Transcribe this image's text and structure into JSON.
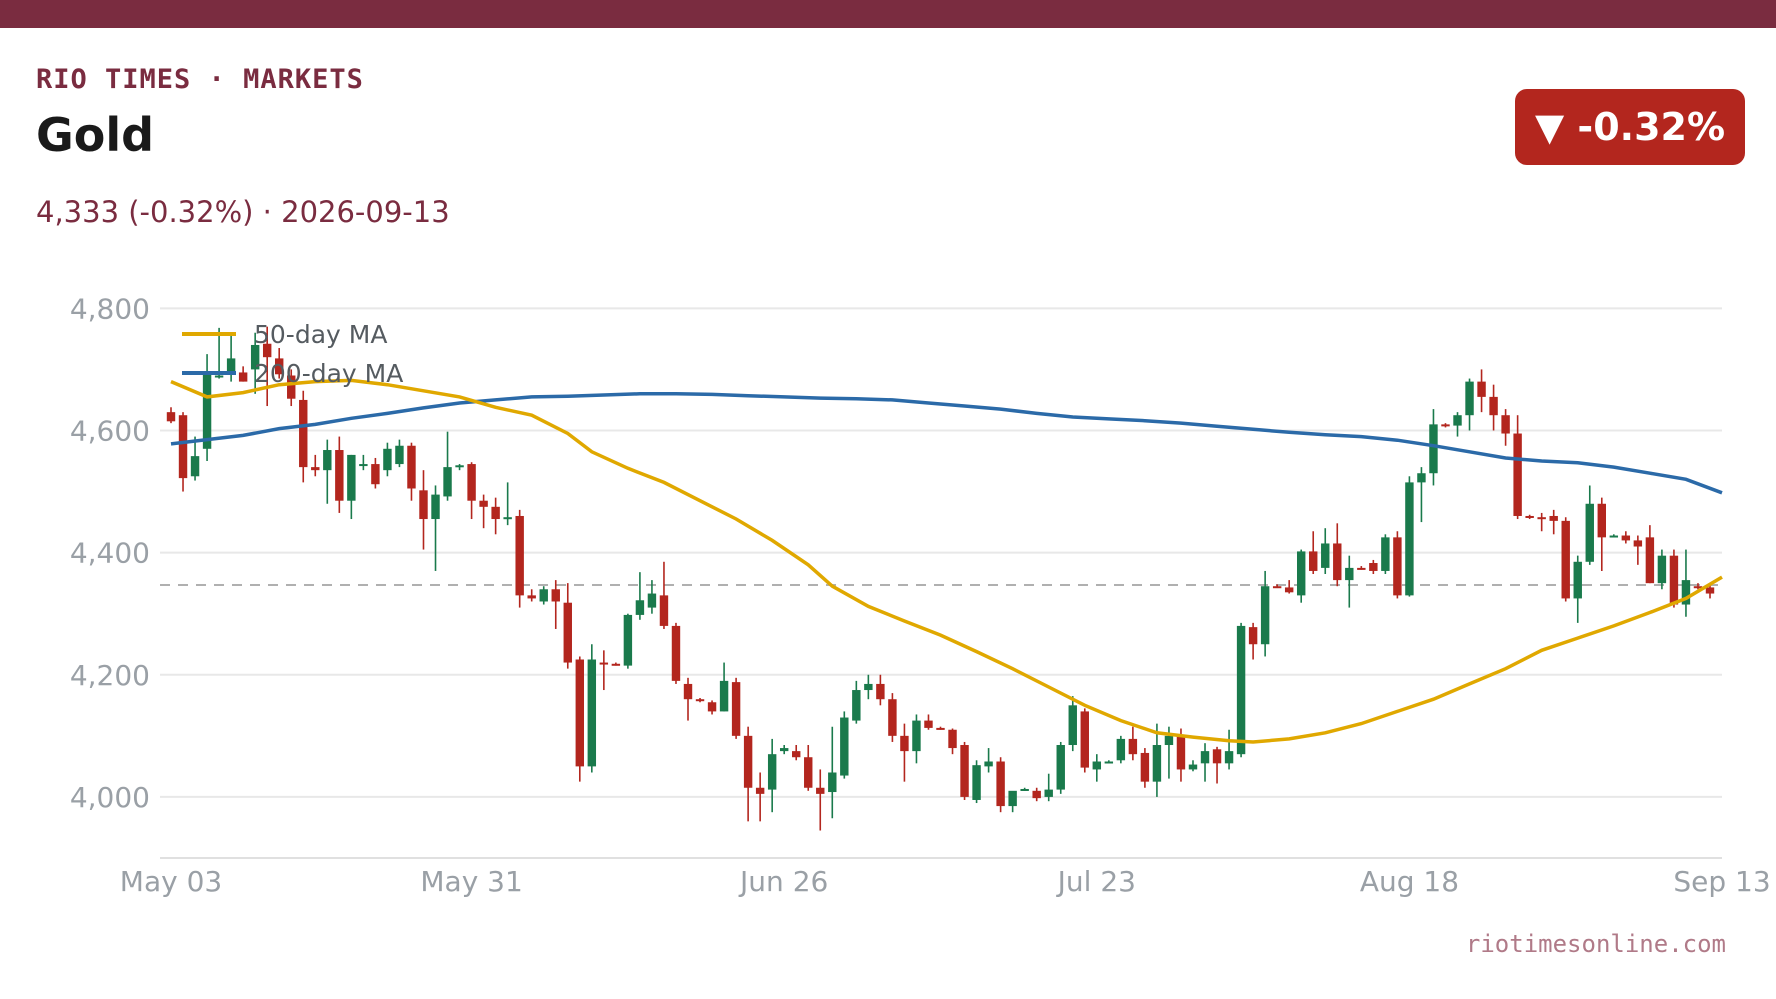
{
  "header": {
    "brand": "RIO TIMES · MARKETS",
    "title": "Gold",
    "subtitle": "4,333 (-0.32%)  ·  2026-09-13",
    "badge": "▼ -0.32%",
    "badge_icon": "down-triangle-icon"
  },
  "footer": {
    "source": "riotimesonline.com"
  },
  "colors": {
    "brand": "#7a2c40",
    "up": "#1a7a4c",
    "down": "#b3261e",
    "ma50": "#e0a800",
    "ma200": "#2b6aa8",
    "grid": "#e8e8e8",
    "reference": "#b0b0b0"
  },
  "chart_data": {
    "type": "candlestick",
    "title": "Gold",
    "ylim": [
      3900,
      4830
    ],
    "yticks": [
      4000,
      4200,
      4400,
      4600,
      4800
    ],
    "ytick_labels": [
      "4,000",
      "4,200",
      "4,400",
      "4,600",
      "4,800"
    ],
    "xticks": [
      {
        "label": "May 03",
        "index": 0
      },
      {
        "label": "May 31",
        "index": 25
      },
      {
        "label": "Jun 26",
        "index": 51
      },
      {
        "label": "Jul 23",
        "index": 77
      },
      {
        "label": "Aug 18",
        "index": 103
      },
      {
        "label": "Sep 13",
        "index": 129
      }
    ],
    "reference_line": 4347,
    "legend": [
      {
        "name": "50-day MA",
        "color": "#e0a800"
      },
      {
        "name": "200-day MA",
        "color": "#2b6aa8"
      }
    ],
    "ohlc": [
      [
        4630,
        4638,
        4612,
        4615
      ],
      [
        4625,
        4630,
        4500,
        4522
      ],
      [
        4525,
        4590,
        4518,
        4558
      ],
      [
        4570,
        4725,
        4550,
        4695
      ],
      [
        4690,
        4768,
        4685,
        4690
      ],
      [
        4692,
        4755,
        4680,
        4718
      ],
      [
        4695,
        4705,
        4680,
        4680
      ],
      [
        4700,
        4760,
        4660,
        4740
      ],
      [
        4742,
        4770,
        4640,
        4720
      ],
      [
        4718,
        4735,
        4685,
        4692
      ],
      [
        4690,
        4700,
        4640,
        4652
      ],
      [
        4650,
        4665,
        4515,
        4540
      ],
      [
        4540,
        4560,
        4525,
        4535
      ],
      [
        4535,
        4585,
        4480,
        4568
      ],
      [
        4568,
        4590,
        4465,
        4485
      ],
      [
        4485,
        4560,
        4455,
        4560
      ],
      [
        4545,
        4560,
        4535,
        4545
      ],
      [
        4545,
        4555,
        4505,
        4512
      ],
      [
        4535,
        4580,
        4525,
        4570
      ],
      [
        4545,
        4585,
        4540,
        4575
      ],
      [
        4575,
        4580,
        4485,
        4505
      ],
      [
        4502,
        4535,
        4405,
        4455
      ],
      [
        4455,
        4510,
        4370,
        4495
      ],
      [
        4492,
        4598,
        4485,
        4540
      ],
      [
        4540,
        4545,
        4535,
        4543
      ],
      [
        4545,
        4548,
        4455,
        4485
      ],
      [
        4485,
        4495,
        4440,
        4475
      ],
      [
        4475,
        4490,
        4430,
        4455
      ],
      [
        4455,
        4515,
        4445,
        4458
      ],
      [
        4460,
        4470,
        4310,
        4330
      ],
      [
        4330,
        4340,
        4320,
        4325
      ],
      [
        4320,
        4345,
        4315,
        4340
      ],
      [
        4340,
        4355,
        4275,
        4320
      ],
      [
        4318,
        4350,
        4210,
        4220
      ],
      [
        4225,
        4230,
        4025,
        4050
      ],
      [
        4050,
        4250,
        4040,
        4225
      ],
      [
        4220,
        4240,
        4175,
        4218
      ],
      [
        4218,
        4220,
        4215,
        4215
      ],
      [
        4215,
        4300,
        4210,
        4298
      ],
      [
        4298,
        4368,
        4290,
        4322
      ],
      [
        4310,
        4355,
        4300,
        4333
      ],
      [
        4330,
        4385,
        4275,
        4280
      ],
      [
        4280,
        4285,
        4185,
        4190
      ],
      [
        4185,
        4195,
        4125,
        4160
      ],
      [
        4160,
        4162,
        4155,
        4157
      ],
      [
        4155,
        4158,
        4135,
        4140
      ],
      [
        4140,
        4220,
        4140,
        4190
      ],
      [
        4188,
        4195,
        4095,
        4100
      ],
      [
        4100,
        4115,
        3960,
        4015
      ],
      [
        4015,
        4040,
        3960,
        4005
      ],
      [
        4012,
        4095,
        3975,
        4070
      ],
      [
        4075,
        4085,
        4070,
        4080
      ],
      [
        4075,
        4085,
        4060,
        4065
      ],
      [
        4065,
        4085,
        4010,
        4015
      ],
      [
        4015,
        4045,
        3945,
        4005
      ],
      [
        4008,
        4115,
        3965,
        4040
      ],
      [
        4035,
        4140,
        4030,
        4130
      ],
      [
        4125,
        4190,
        4120,
        4175
      ],
      [
        4175,
        4200,
        4160,
        4185
      ],
      [
        4185,
        4200,
        4150,
        4160
      ],
      [
        4160,
        4170,
        4090,
        4100
      ],
      [
        4100,
        4120,
        4025,
        4075
      ],
      [
        4075,
        4135,
        4055,
        4125
      ],
      [
        4125,
        4135,
        4110,
        4113
      ],
      [
        4113,
        4115,
        4110,
        4110
      ],
      [
        4110,
        4112,
        4070,
        4080
      ],
      [
        4085,
        4090,
        3995,
        4000
      ],
      [
        3995,
        4060,
        3990,
        4052
      ],
      [
        4050,
        4080,
        4040,
        4058
      ],
      [
        4058,
        4065,
        3975,
        3985
      ],
      [
        3985,
        4005,
        3975,
        4010
      ],
      [
        4012,
        4015,
        4010,
        4013
      ],
      [
        4010,
        4015,
        3993,
        3998
      ],
      [
        4000,
        4038,
        3993,
        4012
      ],
      [
        4012,
        4090,
        4005,
        4085
      ],
      [
        4085,
        4165,
        4075,
        4150
      ],
      [
        4140,
        4145,
        4040,
        4048
      ],
      [
        4045,
        4070,
        4025,
        4058
      ],
      [
        4057,
        4060,
        4055,
        4058
      ],
      [
        4060,
        4100,
        4055,
        4095
      ],
      [
        4095,
        4115,
        4060,
        4070
      ],
      [
        4072,
        4080,
        4015,
        4025
      ],
      [
        4025,
        4120,
        4000,
        4085
      ],
      [
        4085,
        4115,
        4030,
        4100
      ],
      [
        4100,
        4112,
        4025,
        4045
      ],
      [
        4045,
        4060,
        4042,
        4053
      ],
      [
        4055,
        4088,
        4025,
        4075
      ],
      [
        4078,
        4082,
        4022,
        4055
      ],
      [
        4055,
        4110,
        4045,
        4075
      ],
      [
        4070,
        4285,
        4065,
        4280
      ],
      [
        4278,
        4285,
        4225,
        4250
      ],
      [
        4250,
        4370,
        4230,
        4345
      ],
      [
        4345,
        4348,
        4342,
        4343
      ],
      [
        4343,
        4355,
        4333,
        4335
      ],
      [
        4330,
        4405,
        4318,
        4402
      ],
      [
        4402,
        4435,
        4365,
        4370
      ],
      [
        4375,
        4440,
        4365,
        4415
      ],
      [
        4415,
        4448,
        4345,
        4355
      ],
      [
        4355,
        4395,
        4310,
        4375
      ],
      [
        4375,
        4378,
        4372,
        4373
      ],
      [
        4383,
        4388,
        4365,
        4370
      ],
      [
        4370,
        4430,
        4365,
        4425
      ],
      [
        4425,
        4435,
        4325,
        4330
      ],
      [
        4330,
        4525,
        4328,
        4515
      ],
      [
        4515,
        4540,
        4450,
        4530
      ],
      [
        4530,
        4635,
        4510,
        4610
      ],
      [
        4610,
        4612,
        4605,
        4608
      ],
      [
        4608,
        4630,
        4590,
        4625
      ],
      [
        4625,
        4685,
        4600,
        4680
      ],
      [
        4680,
        4700,
        4630,
        4655
      ],
      [
        4655,
        4675,
        4600,
        4625
      ],
      [
        4625,
        4635,
        4575,
        4595
      ],
      [
        4595,
        4625,
        4455,
        4460
      ],
      [
        4460,
        4462,
        4455,
        4458
      ],
      [
        4458,
        4465,
        4435,
        4455
      ],
      [
        4460,
        4470,
        4430,
        4452
      ],
      [
        4452,
        4458,
        4320,
        4325
      ],
      [
        4325,
        4395,
        4285,
        4385
      ],
      [
        4385,
        4510,
        4380,
        4480
      ],
      [
        4480,
        4490,
        4370,
        4425
      ],
      [
        4425,
        4430,
        4425,
        4428
      ],
      [
        4428,
        4435,
        4415,
        4420
      ],
      [
        4420,
        4428,
        4380,
        4410
      ],
      [
        4425,
        4445,
        4350,
        4350
      ],
      [
        4350,
        4405,
        4340,
        4395
      ],
      [
        4395,
        4405,
        4310,
        4315
      ],
      [
        4315,
        4405,
        4295,
        4355
      ],
      [
        4345,
        4350,
        4340,
        4343
      ],
      [
        4343,
        4348,
        4325,
        4333
      ]
    ],
    "ma50": [
      [
        0,
        4680
      ],
      [
        3,
        4655
      ],
      [
        6,
        4662
      ],
      [
        9,
        4675
      ],
      [
        12,
        4680
      ],
      [
        15,
        4682
      ],
      [
        18,
        4675
      ],
      [
        21,
        4665
      ],
      [
        24,
        4655
      ],
      [
        27,
        4638
      ],
      [
        30,
        4625
      ],
      [
        33,
        4595
      ],
      [
        35,
        4565
      ],
      [
        38,
        4538
      ],
      [
        41,
        4515
      ],
      [
        44,
        4485
      ],
      [
        47,
        4455
      ],
      [
        50,
        4420
      ],
      [
        53,
        4380
      ],
      [
        55,
        4345
      ],
      [
        58,
        4312
      ],
      [
        61,
        4288
      ],
      [
        64,
        4265
      ],
      [
        67,
        4238
      ],
      [
        70,
        4210
      ],
      [
        73,
        4180
      ],
      [
        76,
        4150
      ],
      [
        79,
        4125
      ],
      [
        82,
        4105
      ],
      [
        85,
        4098
      ],
      [
        88,
        4092
      ],
      [
        90,
        4090
      ],
      [
        93,
        4095
      ],
      [
        96,
        4105
      ],
      [
        99,
        4120
      ],
      [
        102,
        4140
      ],
      [
        105,
        4160
      ],
      [
        108,
        4185
      ],
      [
        111,
        4210
      ],
      [
        114,
        4240
      ],
      [
        117,
        4260
      ],
      [
        120,
        4280
      ],
      [
        123,
        4302
      ],
      [
        126,
        4325
      ],
      [
        129,
        4360
      ]
    ],
    "ma200": [
      [
        0,
        4578
      ],
      [
        3,
        4585
      ],
      [
        6,
        4592
      ],
      [
        9,
        4603
      ],
      [
        12,
        4610
      ],
      [
        15,
        4620
      ],
      [
        18,
        4628
      ],
      [
        21,
        4637
      ],
      [
        24,
        4645
      ],
      [
        27,
        4650
      ],
      [
        30,
        4655
      ],
      [
        33,
        4656
      ],
      [
        36,
        4658
      ],
      [
        39,
        4660
      ],
      [
        42,
        4660
      ],
      [
        45,
        4659
      ],
      [
        48,
        4657
      ],
      [
        51,
        4655
      ],
      [
        54,
        4653
      ],
      [
        57,
        4652
      ],
      [
        60,
        4650
      ],
      [
        63,
        4645
      ],
      [
        66,
        4640
      ],
      [
        69,
        4635
      ],
      [
        72,
        4628
      ],
      [
        75,
        4622
      ],
      [
        78,
        4619
      ],
      [
        81,
        4616
      ],
      [
        84,
        4612
      ],
      [
        87,
        4607
      ],
      [
        90,
        4602
      ],
      [
        93,
        4597
      ],
      [
        96,
        4593
      ],
      [
        99,
        4590
      ],
      [
        102,
        4584
      ],
      [
        105,
        4575
      ],
      [
        108,
        4565
      ],
      [
        111,
        4555
      ],
      [
        114,
        4550
      ],
      [
        117,
        4547
      ],
      [
        120,
        4540
      ],
      [
        123,
        4530
      ],
      [
        126,
        4520
      ],
      [
        129,
        4498
      ]
    ]
  }
}
